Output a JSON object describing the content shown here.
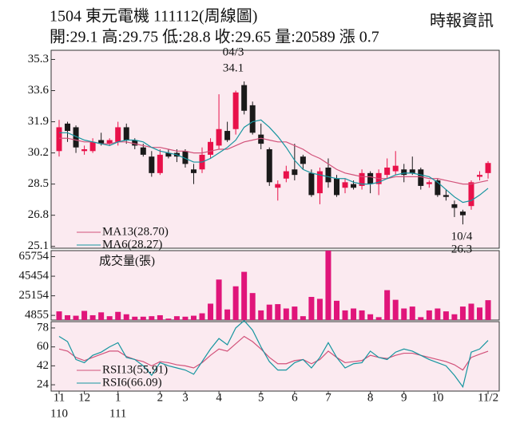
{
  "header": {
    "title": "1504  東元電機 111112(周線圖)",
    "quote": "開:29.1 高:29.75 低:28.8 收:29.65 量:20589 漲 0.7",
    "source": "時報資訊"
  },
  "chart_data": [
    {
      "type": "candlestick",
      "up_color": "#e8114a",
      "down_color": "#1a1a1a",
      "open": [
        30.3,
        31.8,
        31.6,
        30.3,
        30.3,
        30.9,
        30.7,
        30.8,
        31.6,
        30.9,
        30.5,
        30.0,
        29.1,
        30.2,
        30.2,
        30.3,
        29.3,
        29.3,
        30.1,
        30.6,
        31.4,
        31.5,
        33.9,
        32.8,
        31.2,
        30.4,
        28.3,
        28.8,
        29.3,
        30.0,
        29.1,
        28.0,
        29.4,
        28.8,
        28.3,
        28.5,
        28.4,
        29.1,
        28.5,
        29.0,
        29.2,
        29.3,
        29.3,
        29.3,
        28.5,
        28.7,
        27.9,
        27.4,
        27.0,
        27.3,
        28.9,
        29.1
      ],
      "high": [
        32.0,
        31.9,
        31.7,
        30.6,
        31.0,
        31.3,
        31.0,
        31.9,
        31.8,
        31.0,
        30.7,
        30.3,
        30.4,
        30.4,
        30.4,
        30.4,
        29.6,
        30.5,
        31.0,
        33.4,
        31.9,
        33.6,
        34.1,
        33.0,
        31.8,
        30.5,
        28.7,
        29.5,
        30.7,
        30.1,
        29.3,
        29.4,
        29.9,
        29.0,
        28.8,
        28.7,
        29.3,
        29.2,
        29.3,
        29.9,
        30.3,
        29.6,
        30.0,
        29.4,
        28.7,
        28.8,
        28.2,
        27.6,
        27.1,
        28.7,
        29.2,
        29.75
      ],
      "low": [
        30.0,
        30.8,
        30.2,
        30.1,
        30.2,
        30.6,
        30.6,
        30.6,
        30.7,
        30.4,
        30.0,
        28.9,
        29.0,
        29.9,
        29.7,
        29.4,
        28.5,
        29.1,
        29.9,
        30.4,
        30.8,
        31.2,
        32.3,
        31.2,
        30.4,
        28.4,
        27.6,
        28.6,
        28.7,
        29.3,
        27.8,
        27.4,
        28.3,
        27.8,
        28.0,
        28.2,
        28.2,
        28.0,
        27.9,
        28.8,
        29.0,
        28.6,
        29.0,
        28.2,
        28.3,
        27.8,
        27.6,
        26.7,
        26.3,
        27.1,
        28.7,
        28.8
      ],
      "close": [
        31.6,
        31.4,
        30.5,
        30.4,
        30.8,
        30.7,
        30.9,
        31.6,
        30.9,
        30.6,
        30.1,
        29.1,
        30.1,
        30.0,
        30.0,
        29.6,
        29.1,
        30.1,
        30.8,
        31.5,
        30.9,
        33.5,
        32.5,
        31.3,
        30.7,
        28.6,
        28.5,
        29.2,
        29.0,
        29.6,
        27.9,
        29.2,
        28.6,
        27.9,
        28.6,
        28.3,
        29.1,
        28.5,
        29.1,
        29.4,
        29.5,
        29.0,
        29.1,
        28.4,
        28.6,
        27.9,
        27.8,
        27.2,
        26.8,
        28.6,
        29.0,
        29.65
      ],
      "series": [
        {
          "name": "MA13(28.70)",
          "color": "#d2527a",
          "values": [
            31.0,
            31.0,
            30.9,
            30.8,
            30.8,
            30.7,
            30.7,
            30.8,
            30.8,
            30.7,
            30.6,
            30.5,
            30.5,
            30.4,
            30.3,
            30.3,
            30.2,
            30.2,
            30.3,
            30.4,
            30.4,
            30.6,
            30.8,
            30.9,
            31.0,
            30.9,
            30.8,
            30.8,
            30.6,
            30.4,
            30.1,
            29.9,
            29.6,
            29.3,
            29.1,
            29.0,
            28.9,
            28.9,
            28.8,
            28.8,
            28.9,
            28.9,
            28.9,
            28.9,
            28.8,
            28.8,
            28.7,
            28.6,
            28.5,
            28.5,
            28.6,
            28.7
          ]
        },
        {
          "name": "MA6(28.27)",
          "color": "#15959f",
          "values": [
            31.3,
            31.3,
            31.1,
            30.9,
            30.8,
            30.7,
            30.6,
            30.8,
            30.9,
            30.9,
            30.8,
            30.5,
            30.3,
            30.2,
            30.1,
            29.9,
            29.7,
            29.7,
            29.9,
            30.2,
            30.5,
            30.9,
            31.6,
            31.9,
            32.0,
            31.6,
            31.1,
            30.5,
            29.8,
            29.3,
            29.1,
            29.0,
            28.9,
            28.8,
            28.8,
            28.6,
            28.5,
            28.5,
            28.6,
            28.8,
            29.0,
            29.1,
            29.1,
            29.0,
            28.9,
            28.6,
            28.2,
            27.8,
            27.5,
            27.6,
            27.9,
            28.27
          ]
        }
      ],
      "annotations": [
        "04/3",
        "34.1",
        "10/4",
        "26.3"
      ],
      "ylim": [
        25.0,
        35.8
      ],
      "yticks": [
        35.3,
        33.6,
        31.9,
        30.2,
        28.5,
        26.8,
        25.1
      ]
    },
    {
      "type": "bar",
      "label": "成交量(張)",
      "color": "#e0157a",
      "values": [
        9000,
        5000,
        4500,
        9500,
        5000,
        8000,
        4000,
        8500,
        6000,
        3500,
        3500,
        4000,
        5000,
        1500,
        4000,
        3500,
        4500,
        7000,
        17000,
        42000,
        11000,
        35000,
        50000,
        28000,
        10000,
        16000,
        16500,
        12000,
        14000,
        4000,
        24000,
        22000,
        72000,
        20000,
        10000,
        12000,
        10000,
        6000,
        3000,
        31000,
        21000,
        12000,
        14000,
        3000,
        10000,
        12000,
        9000,
        6000,
        14000,
        17000,
        13000,
        20589
      ],
      "ylim": [
        0,
        72000
      ],
      "yticks": [
        65754,
        45454,
        25154,
        4855
      ]
    },
    {
      "type": "line",
      "categories": [
        "11",
        null,
        null,
        "12",
        null,
        null,
        null,
        "1",
        null,
        null,
        null,
        null,
        "2",
        null,
        null,
        "3",
        null,
        null,
        null,
        "4",
        null,
        null,
        null,
        null,
        "5",
        null,
        null,
        null,
        "6",
        null,
        null,
        null,
        "7",
        null,
        null,
        null,
        null,
        "8",
        null,
        null,
        null,
        "9",
        null,
        null,
        null,
        "10",
        null,
        null,
        null,
        null,
        null,
        "11/2"
      ],
      "sublabels": [
        "110",
        null,
        null,
        null,
        null,
        null,
        null,
        "111",
        null,
        null,
        null,
        null,
        null,
        null,
        null,
        null,
        null,
        null,
        null,
        null,
        null,
        null,
        null,
        null,
        null,
        null,
        null,
        null,
        null,
        null,
        null,
        null,
        null,
        null,
        null,
        null,
        null,
        null,
        null,
        null,
        null,
        null,
        null,
        null,
        null,
        null,
        null,
        null,
        null,
        null,
        null,
        null
      ],
      "series": [
        {
          "name": "RSI13(55.91)",
          "color": "#d2527a",
          "values": [
            58,
            56,
            50,
            47,
            50,
            53,
            56,
            56,
            51,
            48,
            46,
            42,
            46,
            45,
            43,
            42,
            40,
            45,
            52,
            58,
            56,
            63,
            70,
            65,
            58,
            50,
            44,
            44,
            47,
            48,
            44,
            48,
            56,
            50,
            45,
            46,
            47,
            52,
            50,
            49,
            52,
            54,
            54,
            52,
            50,
            48,
            46,
            43,
            38,
            50,
            53,
            55.91
          ]
        },
        {
          "name": "RSI6(66.09)",
          "color": "#15959f",
          "values": [
            70,
            65,
            48,
            45,
            52,
            55,
            60,
            64,
            50,
            48,
            42,
            33,
            45,
            42,
            40,
            38,
            34,
            46,
            58,
            68,
            62,
            78,
            85,
            76,
            60,
            46,
            38,
            38,
            45,
            48,
            40,
            50,
            64,
            50,
            40,
            44,
            45,
            56,
            50,
            48,
            55,
            58,
            56,
            52,
            48,
            45,
            42,
            33,
            22,
            55,
            58,
            66.09
          ]
        }
      ],
      "ylim": [
        18,
        84
      ],
      "yticks": [
        78,
        60,
        42,
        24
      ]
    }
  ]
}
